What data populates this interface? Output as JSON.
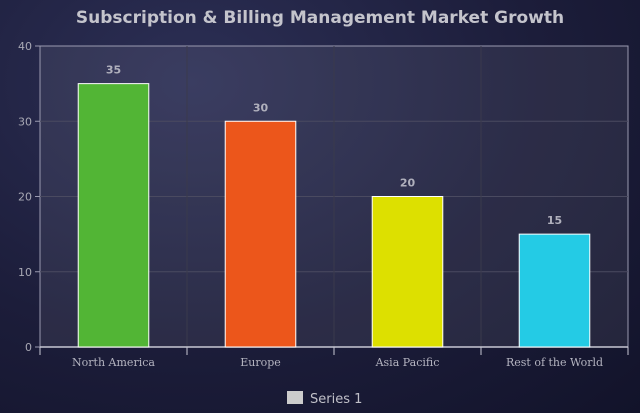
{
  "chart_data": {
    "type": "bar",
    "title": "Subscription & Billing Management Market Growth",
    "xlabel": "",
    "ylabel": "",
    "categories": [
      "North America",
      "Europe",
      "Asia Pacific",
      "Rest of the World"
    ],
    "series": [
      {
        "name": "Series 1",
        "values": [
          35,
          30,
          20,
          15
        ]
      }
    ],
    "colors": [
      "#52b535",
      "#ec561b",
      "#dde000",
      "#24cbe5"
    ],
    "ylim": [
      0,
      40
    ],
    "yticks": [
      0,
      10,
      20,
      30,
      40
    ],
    "grid": true,
    "legend_position": "bottom",
    "legend_swatch_color": "#cccccc"
  }
}
